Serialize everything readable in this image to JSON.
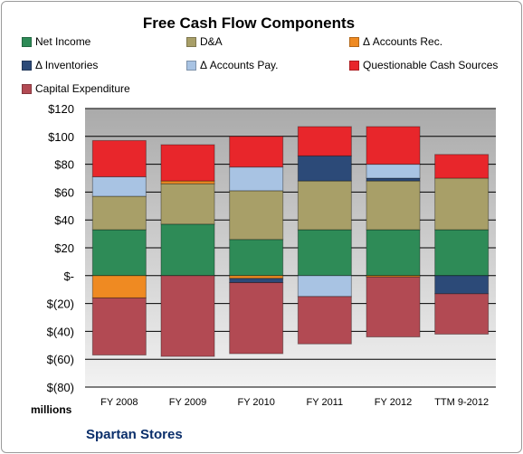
{
  "chart_data": {
    "type": "bar",
    "stacked": true,
    "title": "Free Cash Flow Components",
    "unit_label": "millions",
    "categories": [
      "FY 2008",
      "FY 2009",
      "FY 2010",
      "FY 2011",
      "FY 2012",
      "TTM 9-2012"
    ],
    "yticks": [
      "$120",
      "$100",
      "$80",
      "$60",
      "$40",
      "$20",
      "$-",
      "$(20)",
      "$(40)",
      "$(60)",
      "$(80)"
    ],
    "ylim": [
      -80,
      120
    ],
    "grid": true,
    "legend_position": "top",
    "series": [
      {
        "name": "Net Income",
        "color": "#2e8b57",
        "values": [
          33,
          37,
          26,
          33,
          33,
          33
        ]
      },
      {
        "name": "D&A",
        "color": "#a89f68",
        "values": [
          24,
          29,
          35,
          35,
          35,
          37
        ]
      },
      {
        "name": "Δ Accounts Rec.",
        "color": "#ef8a22",
        "values": [
          -16,
          2,
          -2,
          0,
          -1,
          0
        ]
      },
      {
        "name": "Δ Inventories",
        "color": "#2c4a78",
        "values": [
          0,
          0,
          -3,
          18,
          2,
          -13
        ]
      },
      {
        "name": "Δ Accounts Pay.",
        "color": "#a8c3e3",
        "values": [
          14,
          0,
          17,
          -15,
          10,
          0
        ]
      },
      {
        "name": "Questionable Cash Sources",
        "color": "#e8262b",
        "values": [
          26,
          26,
          22,
          21,
          27,
          17
        ]
      },
      {
        "name": "Capital Expenditure",
        "color": "#b24a53",
        "values": [
          -41,
          -58,
          -51,
          -34,
          -43,
          -29
        ]
      }
    ],
    "source_label": "Spartan Stores"
  }
}
